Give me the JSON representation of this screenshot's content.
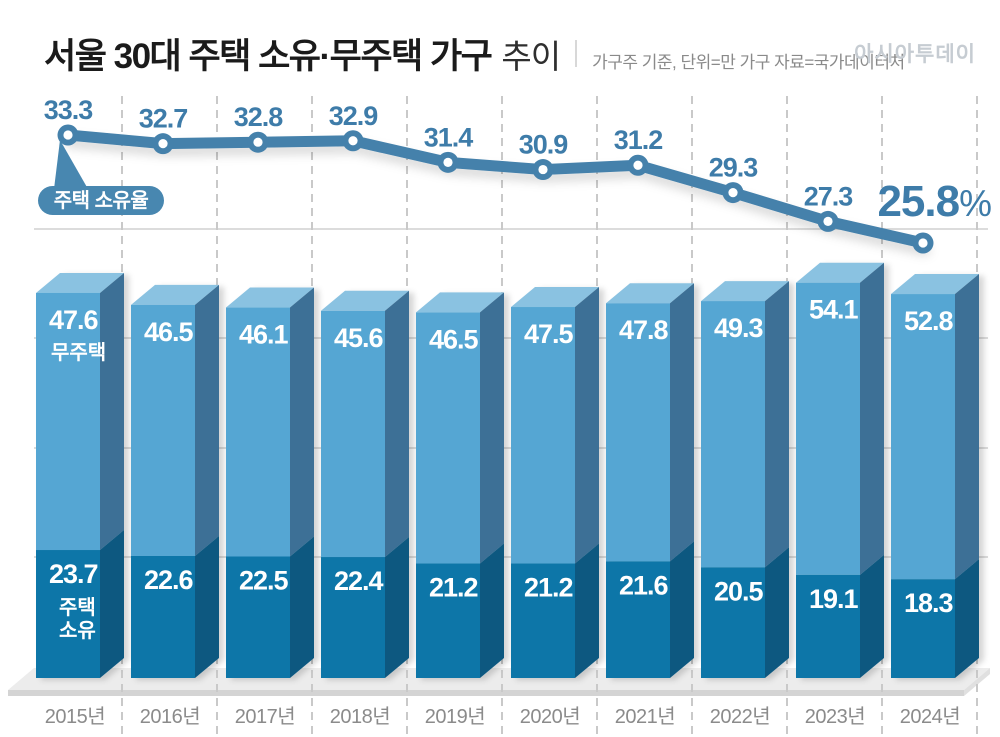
{
  "header": {
    "title": "서울 30대 주택 소유·무주택 가구",
    "title_suffix": "추이",
    "subtitle": "가구주 기준, 단위=만 가구   자료=국가데이터처",
    "logo": "아시아투데이"
  },
  "chart_data": {
    "type": "bar",
    "subtype": "3d-stacked-column-with-line",
    "title": "서울 30대 주택 소유·무주택 가구 추이",
    "unit_note": "가구주 기준, 단위=만 가구",
    "source_note": "자료=국가데이터처",
    "categories": [
      "2015년",
      "2016년",
      "2017년",
      "2018년",
      "2019년",
      "2020년",
      "2021년",
      "2022년",
      "2023년",
      "2024년"
    ],
    "line_series": {
      "name": "주택 소유율",
      "unit": "%",
      "values": [
        33.3,
        32.7,
        32.8,
        32.9,
        31.4,
        30.9,
        31.2,
        29.3,
        27.3,
        25.8
      ],
      "last_value_suffix": "%"
    },
    "bar_series": [
      {
        "role": "upper",
        "name": "무주택",
        "name_lines": [
          "무주택"
        ],
        "values": [
          47.6,
          46.5,
          46.1,
          45.6,
          46.5,
          47.5,
          47.8,
          49.3,
          54.1,
          52.8
        ]
      },
      {
        "role": "lower",
        "name": "주택 소유",
        "name_lines": [
          "주택",
          "소유"
        ],
        "values": [
          23.7,
          22.6,
          22.5,
          22.4,
          21.2,
          21.2,
          21.6,
          20.5,
          19.1,
          18.3
        ]
      }
    ],
    "legend_position": "labels-on-first-bar",
    "grid": {
      "horizontal": "light solid",
      "vertical": "dashed between columns"
    },
    "xlabel": "",
    "ylabel": ""
  },
  "colors": {
    "line": "#4581ab",
    "line_label": "#3e7ca9",
    "callout_bg": "#4887b0",
    "callout_text": "#ffffff",
    "bar_upper_front": "#55a6d3",
    "bar_upper_top": "#8ac2e1",
    "bar_upper_side": "#3d7096",
    "bar_lower_front": "#0e76a8",
    "bar_lower_side": "#0b5880",
    "bar_label": "#ffffff",
    "floor_top": "#ececec",
    "floor_edge": "#d4d4d4",
    "gridline": "#dcdcdc",
    "dash": "#c9c9c9",
    "axis_label": "#8b8b8b",
    "title": "#1b1b1b",
    "subtitle": "#8a8a8a",
    "logo": "#c6ccd2"
  }
}
